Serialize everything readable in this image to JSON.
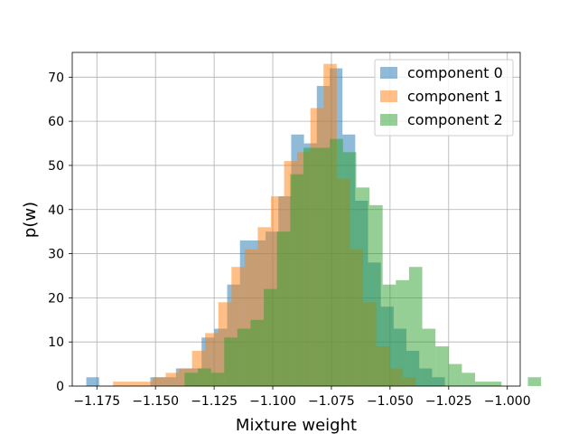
{
  "chart_data": {
    "type": "histogram",
    "xlabel": "Mixture weight",
    "ylabel": "p(w)",
    "title": "",
    "xlim": [
      -1.1855,
      -0.9945
    ],
    "ylim": [
      0,
      75.6
    ],
    "grid": true,
    "legend_position": "top-right",
    "x_ticks": [
      -1.175,
      -1.15,
      -1.125,
      -1.1,
      -1.075,
      -1.05,
      -1.025,
      -1.0
    ],
    "x_tick_labels": [
      "−1.175",
      "−1.150",
      "−1.125",
      "−1.100",
      "−1.075",
      "−1.050",
      "−1.025",
      "−1.000"
    ],
    "y_ticks": [
      0,
      10,
      20,
      30,
      40,
      50,
      60,
      70
    ],
    "y_tick_labels": [
      "0",
      "10",
      "20",
      "30",
      "40",
      "50",
      "60",
      "70"
    ],
    "series": [
      {
        "name": "component 0",
        "color": "#1f77b4",
        "bin_width": 0.00546,
        "bin_start": -1.1795,
        "values": [
          2,
          0,
          0,
          0,
          0,
          2,
          2,
          4,
          4,
          11,
          13,
          23,
          33,
          33,
          35,
          43,
          57,
          55,
          68,
          72,
          57,
          42,
          28,
          18,
          13,
          8,
          4,
          2
        ]
      },
      {
        "name": "component 1",
        "color": "#ff7f0e",
        "bin_width": 0.00561,
        "bin_start": -1.1681,
        "values": [
          1,
          1,
          1,
          2,
          3,
          4,
          8,
          12,
          19,
          27,
          31,
          36,
          43,
          51,
          53,
          63,
          73,
          47,
          31,
          19,
          9,
          4,
          2
        ]
      },
      {
        "name": "component 2",
        "color": "#2ca02c",
        "bin_width": 0.00563,
        "bin_start": -1.1376,
        "values": [
          3,
          4,
          3,
          11,
          13,
          15,
          22,
          35,
          48,
          54,
          54,
          56,
          53,
          45,
          41,
          23,
          24,
          27,
          13,
          9,
          5,
          3,
          1,
          1,
          0,
          0,
          2
        ]
      }
    ]
  }
}
